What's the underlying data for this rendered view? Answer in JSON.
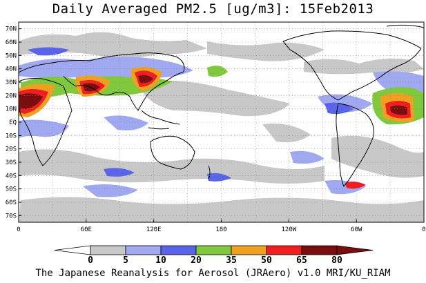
{
  "title": "Daily Averaged PM2.5 [ug/m3]: 15Feb2013",
  "footer": "The Japanese Reanalysis for Aerosol (JRAero) v1.0 MRI/KU_RIAM",
  "lat_labels": [
    "70N",
    "60N",
    "50N",
    "40N",
    "30N",
    "20N",
    "10N",
    "EQ",
    "10S",
    "20S",
    "30S",
    "40S",
    "50S",
    "60S",
    "70S"
  ],
  "lon_labels": [
    "0",
    "60E",
    "120E",
    "180",
    "120W",
    "60W",
    "0"
  ],
  "colorbar": {
    "levels": [
      "0",
      "5",
      "10",
      "20",
      "35",
      "50",
      "65",
      "80"
    ],
    "colors": [
      "#ffffff",
      "#c8c8c8",
      "#a0a8f0",
      "#5a64e8",
      "#80c83c",
      "#f0a020",
      "#f01e1e",
      "#7a0e0e"
    ]
  }
}
